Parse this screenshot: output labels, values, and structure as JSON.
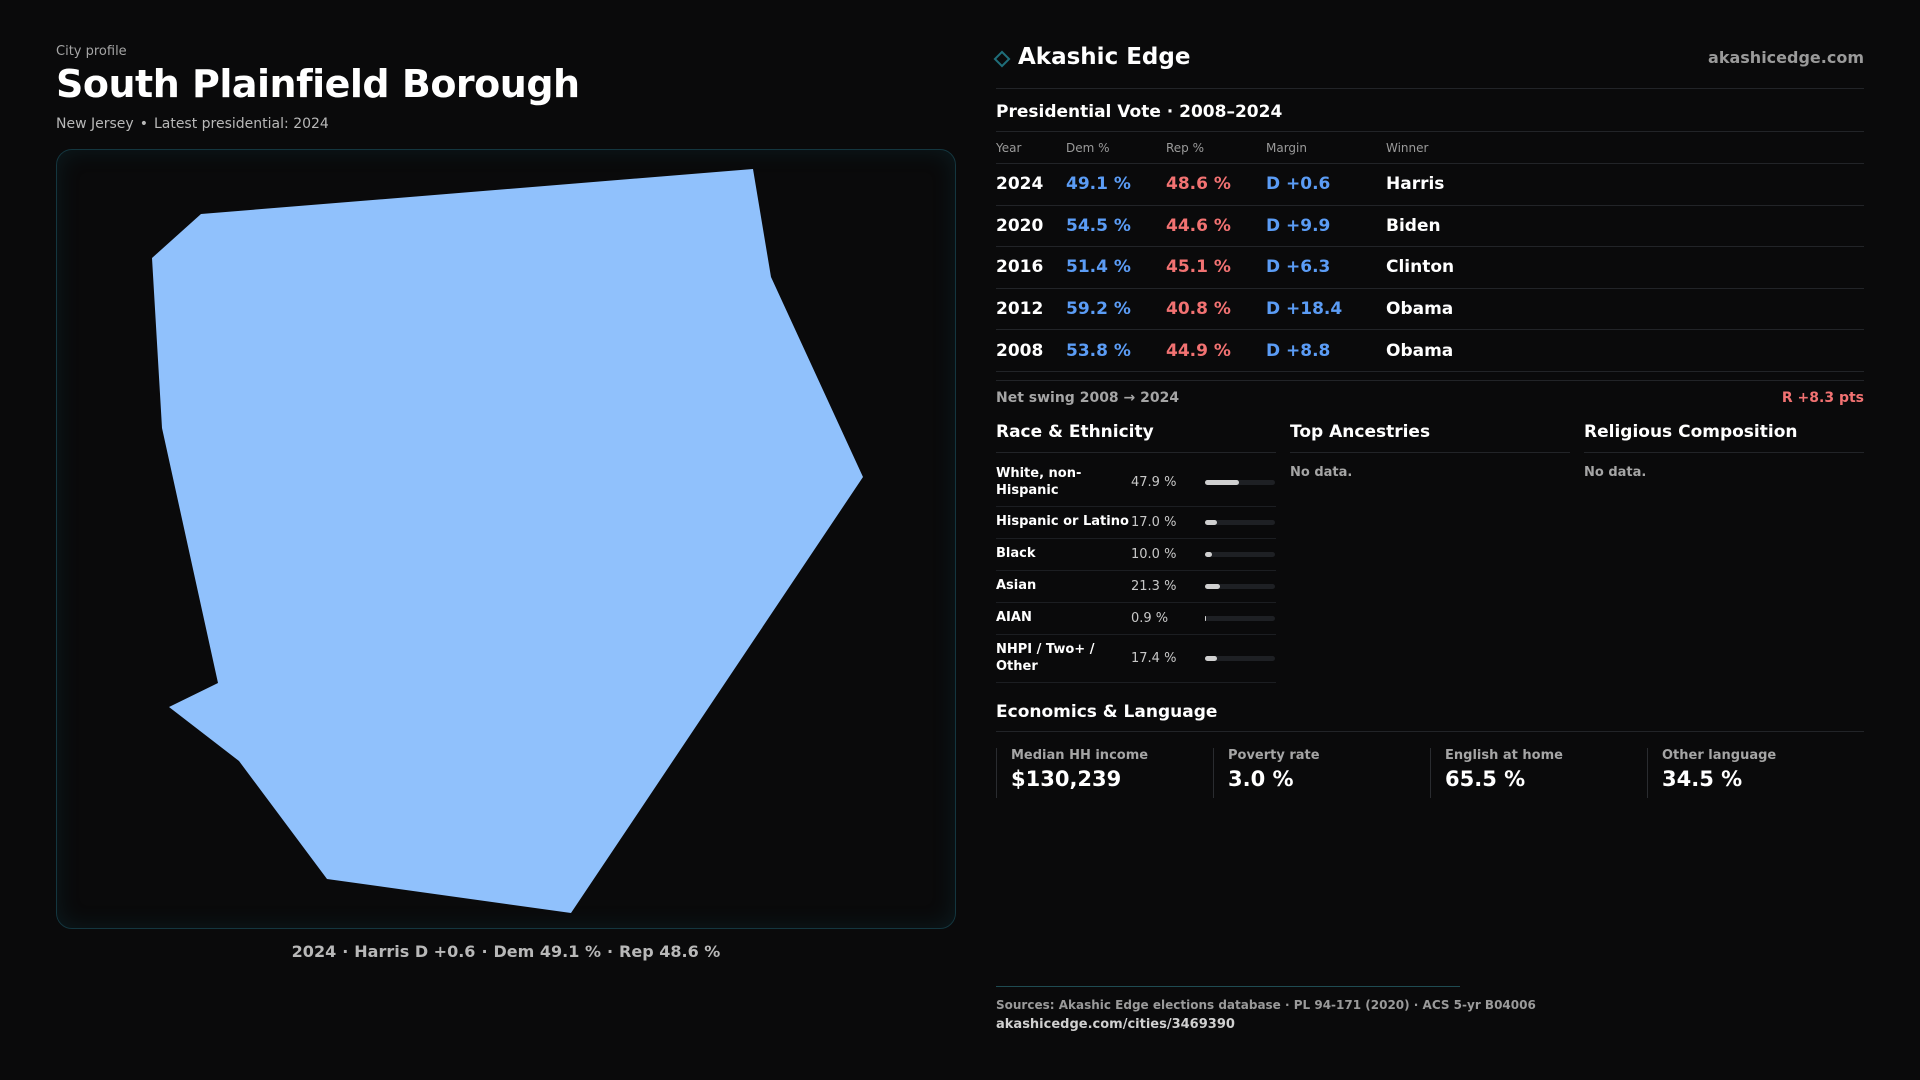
{
  "header": {
    "eyebrow": "City profile",
    "title": "South Plainfield Borough",
    "state": "New Jersey",
    "latest": "Latest presidential: 2024"
  },
  "map": {
    "shape_fill": "#90c1fc",
    "border_color": "#14363f",
    "caption": {
      "year": "2024",
      "winner": "Harris D +0.6",
      "dem": "Dem 49.1 %",
      "rep": "Rep 48.6 %"
    }
  },
  "brand": {
    "name": "Akashic Edge",
    "url": "akashicedge.com",
    "icon": "diamond-icon"
  },
  "vote": {
    "title": "Presidential Vote · 2008–2024",
    "headers": {
      "year": "Year",
      "dem": "Dem %",
      "rep": "Rep %",
      "margin": "Margin",
      "winner": "Winner"
    },
    "rows": [
      {
        "year": "2024",
        "dem": "49.1 %",
        "rep": "48.6 %",
        "margin": "D +0.6",
        "winner": "Harris"
      },
      {
        "year": "2020",
        "dem": "54.5 %",
        "rep": "44.6 %",
        "margin": "D +9.9",
        "winner": "Biden"
      },
      {
        "year": "2016",
        "dem": "51.4 %",
        "rep": "45.1 %",
        "margin": "D +6.3",
        "winner": "Clinton"
      },
      {
        "year": "2012",
        "dem": "59.2 %",
        "rep": "40.8 %",
        "margin": "D +18.4",
        "winner": "Obama"
      },
      {
        "year": "2008",
        "dem": "53.8 %",
        "rep": "44.9 %",
        "margin": "D +8.8",
        "winner": "Obama"
      }
    ],
    "swing_label": "Net swing 2008 → 2024",
    "swing_value": "R +8.3 pts"
  },
  "race": {
    "title": "Race & Ethnicity",
    "rows": [
      {
        "label": "White, non-Hispanic",
        "value": "47.9 %",
        "pct": 47.9
      },
      {
        "label": "Hispanic or Latino",
        "value": "17.0 %",
        "pct": 17.0
      },
      {
        "label": "Black",
        "value": "10.0 %",
        "pct": 10.0
      },
      {
        "label": "Asian",
        "value": "21.3 %",
        "pct": 21.3
      },
      {
        "label": "AIAN",
        "value": "0.9 %",
        "pct": 0.9
      },
      {
        "label": "NHPI / Two+ / Other",
        "value": "17.4 %",
        "pct": 17.4
      }
    ]
  },
  "ancestries": {
    "title": "Top Ancestries",
    "empty": "No data."
  },
  "religion": {
    "title": "Religious Composition",
    "empty": "No data."
  },
  "economics": {
    "title": "Economics & Language",
    "items": [
      {
        "label": "Median HH income",
        "value": "$130,239"
      },
      {
        "label": "Poverty rate",
        "value": "3.0 %"
      },
      {
        "label": "English at home",
        "value": "65.5 %"
      },
      {
        "label": "Other language",
        "value": "34.5 %"
      }
    ]
  },
  "footer": {
    "sources": "Sources: Akashic Edge elections database · PL 94-171 (2020) · ACS 5-yr B04006",
    "url": "akashicedge.com/cities/3469390"
  }
}
